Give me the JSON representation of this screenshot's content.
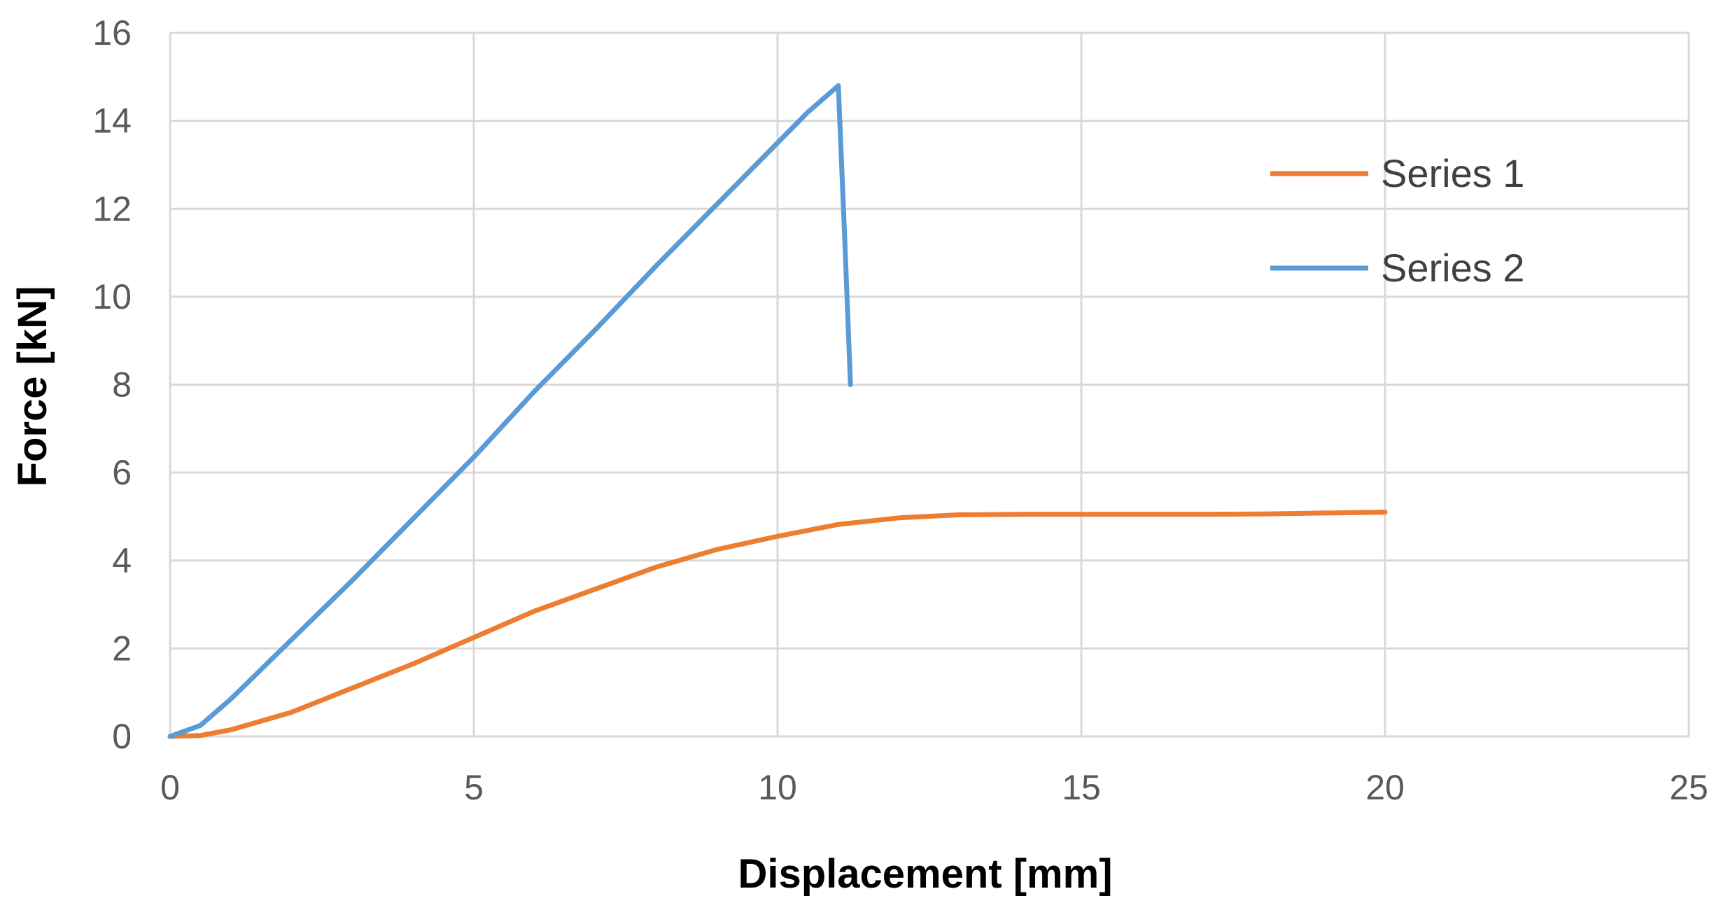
{
  "chart_data": {
    "type": "line",
    "title": "",
    "xlabel": "Displacement [mm]",
    "ylabel": "Force [kN]",
    "xlim": [
      0,
      25
    ],
    "ylim": [
      0,
      16
    ],
    "x_ticks": [
      "0",
      "5",
      "10",
      "15",
      "20",
      "25"
    ],
    "y_ticks": [
      "0",
      "2",
      "4",
      "6",
      "8",
      "10",
      "12",
      "14",
      "16"
    ],
    "grid": true,
    "legend_position": "right",
    "series": [
      {
        "name": "Series 1",
        "color": "#ED7D31",
        "x": [
          0,
          0.5,
          1,
          2,
          3,
          4,
          5,
          6,
          7,
          8,
          9,
          10,
          11,
          12,
          13,
          14,
          15,
          16,
          17,
          18,
          19,
          20
        ],
        "y": [
          0,
          0.02,
          0.15,
          0.55,
          1.1,
          1.65,
          2.25,
          2.85,
          3.35,
          3.85,
          4.25,
          4.55,
          4.82,
          4.97,
          5.04,
          5.05,
          5.05,
          5.05,
          5.05,
          5.06,
          5.08,
          5.1
        ]
      },
      {
        "name": "Series 2",
        "color": "#5B9BD5",
        "x": [
          0,
          0.5,
          1,
          2,
          3,
          4,
          5,
          6,
          7,
          8,
          9,
          10,
          10.5,
          11,
          11.1,
          11.2
        ],
        "y": [
          0,
          0.25,
          0.85,
          2.2,
          3.55,
          4.95,
          6.35,
          7.85,
          9.25,
          10.7,
          12.1,
          13.5,
          14.2,
          14.8,
          11.5,
          8.0
        ]
      }
    ]
  }
}
